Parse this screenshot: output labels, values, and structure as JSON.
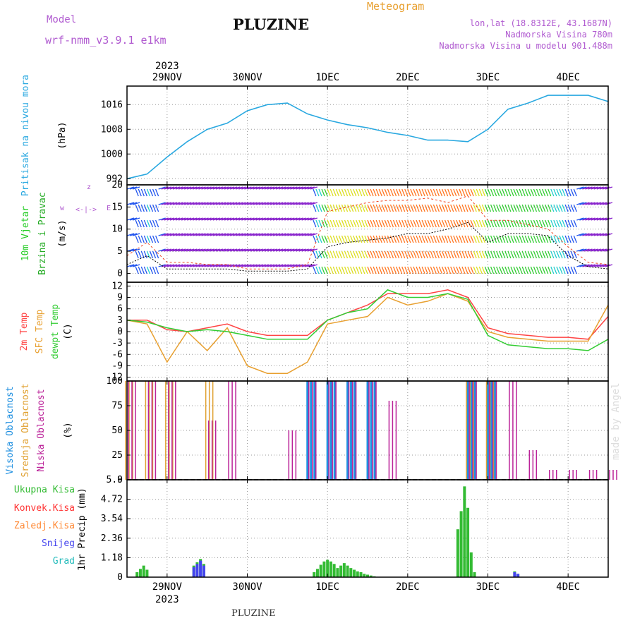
{
  "header": {
    "model_label": "Model",
    "model_name": "wrf-nmm_v3.9.1  e1km",
    "title": "PLUZINE",
    "meteogram_label": "Meteogram",
    "lonlat": "lon,lat (18.8312E, 43.1687N)",
    "altitude": "Nadmorska Visina 780m",
    "model_altitude": "Nadmorska Visina u modelu 901.488m",
    "footer_station": "PLUZINE",
    "watermark": "made by Angel"
  },
  "colors": {
    "pressure": "#29a8e0",
    "wind": "#22cc22",
    "wind_title2": "#22aa22",
    "temp2m": "#ff4444",
    "sfc": "#e8a030",
    "dewpt": "#33cc33",
    "cloud_high": "#2090e0",
    "cloud_mid": "#e0a030",
    "cloud_low": "#bb2299",
    "rain_total": "#33bb33",
    "rain_conv": "#ff3333",
    "rain_frz": "#ff8833",
    "snow": "#4444ee",
    "grad": "#22bbbb",
    "purple": "#b05ad0",
    "orange": "#e8a030"
  },
  "time_axis": {
    "year": "2023",
    "days": [
      "29NOV",
      "30NOV",
      "1DEC",
      "2DEC",
      "3DEC",
      "4DEC"
    ],
    "start": "2023-11-28 12:00",
    "end": "2023-12-04 12:00"
  },
  "chart_data": [
    {
      "type": "line",
      "title": "Pritisak na nivou mora",
      "ylabel": "(hPa)",
      "ylim": [
        990,
        1022
      ],
      "yticks": [
        "992",
        "1000",
        "1008",
        "1016"
      ],
      "x": [
        "2023-11-28 12:00",
        "2023-11-28 18:00",
        "2023-11-29 00:00",
        "2023-11-29 06:00",
        "2023-11-29 12:00",
        "2023-11-29 18:00",
        "2023-11-30 00:00",
        "2023-11-30 06:00",
        "2023-11-30 12:00",
        "2023-11-30 18:00",
        "2023-12-01 00:00",
        "2023-12-01 06:00",
        "2023-12-01 12:00",
        "2023-12-01 18:00",
        "2023-12-02 00:00",
        "2023-12-02 06:00",
        "2023-12-02 12:00",
        "2023-12-02 18:00",
        "2023-12-03 00:00",
        "2023-12-03 06:00",
        "2023-12-03 12:00",
        "2023-12-03 18:00",
        "2023-12-04 00:00",
        "2023-12-04 06:00",
        "2023-12-04 12:00"
      ],
      "series": [
        {
          "values": [
            992,
            993.5,
            999,
            1004,
            1008,
            1010,
            1014,
            1016,
            1016.5,
            1013,
            1011,
            1009.5,
            1008.5,
            1007,
            1006,
            1004.5,
            1004.5,
            1004,
            1008,
            1014.5,
            1016.5,
            1019,
            1019,
            1019,
            1017
          ]
        }
      ]
    },
    {
      "type": "line",
      "title": "10m Vjetar Brzina i Pravac",
      "ylabel": "(m/s)",
      "ylim": [
        -2,
        20
      ],
      "yticks": [
        "0",
        "5",
        "10",
        "15",
        "20"
      ],
      "x": [
        "2023-11-28 12:00",
        "2023-11-28 18:00",
        "2023-11-29 00:00",
        "2023-11-29 06:00",
        "2023-11-29 12:00",
        "2023-11-29 18:00",
        "2023-11-30 00:00",
        "2023-11-30 06:00",
        "2023-11-30 12:00",
        "2023-11-30 18:00",
        "2023-12-01 00:00",
        "2023-12-01 06:00",
        "2023-12-01 12:00",
        "2023-12-01 18:00",
        "2023-12-02 00:00",
        "2023-12-02 06:00",
        "2023-12-02 12:00",
        "2023-12-02 18:00",
        "2023-12-03 00:00",
        "2023-12-03 06:00",
        "2023-12-03 12:00",
        "2023-12-03 18:00",
        "2023-12-04 00:00",
        "2023-12-04 06:00",
        "2023-12-04 12:00"
      ],
      "series": [
        {
          "values": [
            2,
            4,
            1,
            1,
            1,
            1,
            0.5,
            0.5,
            0.5,
            1,
            6,
            7,
            7.5,
            8,
            9,
            9,
            10,
            11.5,
            7,
            9,
            9,
            8.5,
            4,
            1.5,
            1
          ]
        },
        {
          "values": [
            4,
            7,
            2.5,
            2.5,
            2,
            2,
            1,
            1,
            1,
            2,
            14,
            15,
            16,
            16.5,
            16.5,
            17,
            16,
            17.5,
            12,
            12,
            11,
            10,
            6,
            2.5,
            2
          ]
        }
      ]
    },
    {
      "type": "line",
      "title": "2m Temp / SFC Temp / dewpt Temp",
      "ylabel": "(C)",
      "ylim": [
        -13,
        13
      ],
      "yticks": [
        "-12",
        "-9",
        "-6",
        "-3",
        "0",
        "3",
        "6",
        "9",
        "12"
      ],
      "x": [
        "2023-11-28 12:00",
        "2023-11-28 18:00",
        "2023-11-29 00:00",
        "2023-11-29 06:00",
        "2023-11-29 12:00",
        "2023-11-29 18:00",
        "2023-11-30 00:00",
        "2023-11-30 06:00",
        "2023-11-30 12:00",
        "2023-11-30 18:00",
        "2023-12-01 00:00",
        "2023-12-01 06:00",
        "2023-12-01 12:00",
        "2023-12-01 18:00",
        "2023-12-02 00:00",
        "2023-12-02 06:00",
        "2023-12-02 12:00",
        "2023-12-02 18:00",
        "2023-12-03 00:00",
        "2023-12-03 06:00",
        "2023-12-03 12:00",
        "2023-12-03 18:00",
        "2023-12-04 00:00",
        "2023-12-04 06:00",
        "2023-12-04 12:00"
      ],
      "series": [
        {
          "name": "2m Temp",
          "values": [
            3,
            3,
            0.5,
            0,
            1,
            2,
            0,
            -1,
            -1,
            -1,
            3,
            5,
            7,
            10,
            10,
            10,
            11,
            9,
            1,
            -0.5,
            -1,
            -1.5,
            -1.5,
            -2,
            4
          ]
        },
        {
          "name": "SFC Temp",
          "values": [
            3,
            2,
            -8,
            0,
            -5,
            1,
            -9,
            -11,
            -11,
            -8,
            2,
            3,
            4,
            9,
            7,
            8,
            10,
            8,
            0,
            -1.5,
            -2,
            -2.5,
            -2.5,
            -2.5,
            7
          ]
        },
        {
          "name": "dewpt Temp",
          "values": [
            3,
            2.5,
            1,
            0,
            0.5,
            0,
            -1,
            -2,
            -2,
            -2,
            3,
            5,
            6,
            11,
            9,
            9,
            10,
            8.5,
            -1,
            -3.5,
            -4,
            -4.5,
            -4.5,
            -5,
            -2
          ]
        }
      ]
    },
    {
      "type": "bar",
      "title": "Visoka Oblacnost / Srednja Oblacnost / Niska Oblacnost",
      "ylabel": "(%)",
      "ylim": [
        0,
        100
      ],
      "yticks": [
        "0",
        "25",
        "50",
        "75",
        "100"
      ],
      "x": [
        "2023-11-28 12:00",
        "2023-11-28 18:00",
        "2023-11-29 00:00",
        "2023-11-29 06:00",
        "2023-11-29 12:00",
        "2023-11-29 18:00",
        "2023-11-30 00:00",
        "2023-11-30 06:00",
        "2023-11-30 12:00",
        "2023-11-30 18:00",
        "2023-12-01 00:00",
        "2023-12-01 06:00",
        "2023-12-01 12:00",
        "2023-12-01 18:00",
        "2023-12-02 00:00",
        "2023-12-02 06:00",
        "2023-12-02 12:00",
        "2023-12-02 18:00",
        "2023-12-03 00:00",
        "2023-12-03 06:00",
        "2023-12-03 12:00",
        "2023-12-03 18:00",
        "2023-12-04 00:00",
        "2023-12-04 06:00",
        "2023-12-04 12:00"
      ],
      "series": [
        {
          "name": "Visoka Oblacnost",
          "values": [
            0,
            0,
            0,
            0,
            0,
            0,
            0,
            0,
            0,
            100,
            100,
            100,
            100,
            0,
            0,
            0,
            0,
            100,
            100,
            0,
            0,
            0,
            0,
            0,
            0
          ]
        },
        {
          "name": "Srednja Oblacnost",
          "values": [
            100,
            100,
            100,
            0,
            100,
            0,
            0,
            0,
            0,
            0,
            0,
            0,
            0,
            0,
            0,
            0,
            0,
            100,
            100,
            0,
            0,
            0,
            0,
            0,
            0
          ]
        },
        {
          "name": "Niska Oblacnost",
          "values": [
            100,
            100,
            100,
            0,
            60,
            100,
            0,
            0,
            50,
            100,
            100,
            100,
            100,
            80,
            0,
            0,
            0,
            100,
            100,
            100,
            30,
            10,
            10,
            10,
            10
          ]
        }
      ]
    },
    {
      "type": "bar",
      "title": "Ukupna Kisa / Konvek.Kisa / Zaledj.Kisa / Snijeg / Grad",
      "ylabel": "1hr Precip (mm)",
      "ylim": [
        0,
        5.9
      ],
      "yticks": [
        "0",
        "1.18",
        "2.36",
        "3.54",
        "4.72",
        "5.9"
      ],
      "x": [
        "2023-11-28 15:00",
        "2023-11-28 16:00",
        "2023-11-28 17:00",
        "2023-11-28 18:00",
        "2023-11-29 08:00",
        "2023-11-29 09:00",
        "2023-11-29 10:00",
        "2023-11-29 11:00",
        "2023-11-30 20:00",
        "2023-11-30 21:00",
        "2023-11-30 22:00",
        "2023-11-30 23:00",
        "2023-12-01 00:00",
        "2023-12-01 01:00",
        "2023-12-01 02:00",
        "2023-12-01 03:00",
        "2023-12-01 04:00",
        "2023-12-01 05:00",
        "2023-12-01 06:00",
        "2023-12-01 07:00",
        "2023-12-01 08:00",
        "2023-12-01 09:00",
        "2023-12-01 10:00",
        "2023-12-01 11:00",
        "2023-12-01 12:00",
        "2023-12-01 13:00",
        "2023-12-01 14:00",
        "2023-12-02 15:00",
        "2023-12-02 16:00",
        "2023-12-02 17:00",
        "2023-12-02 18:00",
        "2023-12-02 19:00",
        "2023-12-02 20:00",
        "2023-12-03 08:00",
        "2023-12-03 09:00"
      ],
      "series": [
        {
          "name": "Ukupna Kisa",
          "values": [
            0.3,
            0.5,
            0.7,
            0.45,
            0.7,
            0.9,
            1.1,
            0.8,
            0.3,
            0.5,
            0.75,
            0.95,
            1.05,
            0.95,
            0.8,
            0.55,
            0.7,
            0.85,
            0.7,
            0.55,
            0.45,
            0.35,
            0.3,
            0.2,
            0.15,
            0.1,
            0.05,
            2.9,
            4.0,
            5.5,
            4.2,
            1.5,
            0.3,
            0.35,
            0.2
          ]
        },
        {
          "name": "Snijeg",
          "values": [
            0,
            0,
            0,
            0,
            0.6,
            0.8,
            1.0,
            0.7,
            0,
            0,
            0,
            0,
            0,
            0,
            0,
            0,
            0,
            0,
            0,
            0,
            0,
            0,
            0,
            0,
            0,
            0,
            0,
            0,
            0,
            0,
            0,
            0,
            0,
            0.3,
            0.2
          ]
        }
      ]
    }
  ]
}
